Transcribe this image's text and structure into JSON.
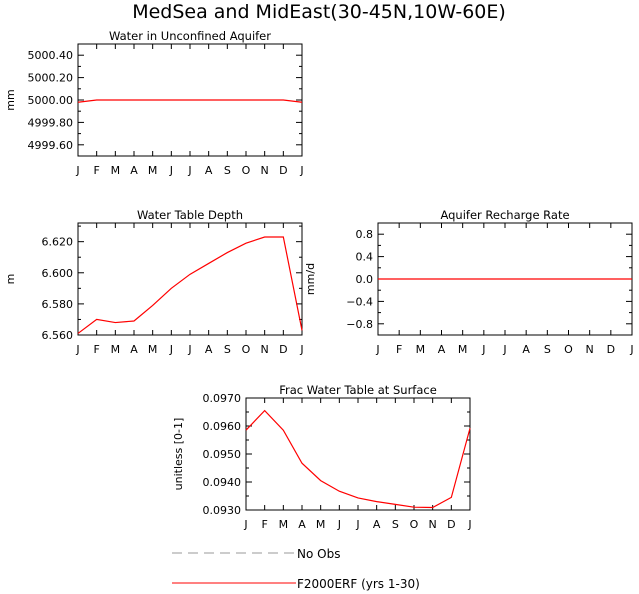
{
  "page_title": "MedSea and MidEast(30-45N,10W-60E)",
  "months": [
    "J",
    "F",
    "M",
    "A",
    "M",
    "J",
    "J",
    "A",
    "S",
    "O",
    "N",
    "D",
    "J"
  ],
  "legend": [
    {
      "label": "No Obs",
      "style": "dashed",
      "color": "#999999"
    },
    {
      "label": "F2000ERF (yrs 1-30)",
      "style": "solid",
      "color": "#ff0000"
    }
  ],
  "chart_data": [
    {
      "type": "line",
      "title": "Water in Unconfined Aquifer",
      "xlabel": "",
      "ylabel": "mm",
      "ylim": [
        4999.5,
        5000.5
      ],
      "yticks": [
        4999.6,
        4999.8,
        5000.0,
        5000.2,
        5000.4
      ],
      "ytick_labels": [
        "4999.60",
        "4999.80",
        "5000.00",
        "5000.20",
        "5000.40"
      ],
      "categories": [
        "J",
        "F",
        "M",
        "A",
        "M",
        "J",
        "J",
        "A",
        "S",
        "O",
        "N",
        "D",
        "J"
      ],
      "series": [
        {
          "name": "F2000ERF (yrs 1-30)",
          "color": "#ff0000",
          "values": [
            4999.98,
            5000.0,
            5000.0,
            5000.0,
            5000.0,
            5000.0,
            5000.0,
            5000.0,
            5000.0,
            5000.0,
            5000.0,
            5000.0,
            4999.98
          ]
        }
      ]
    },
    {
      "type": "line",
      "title": "Water Table Depth",
      "xlabel": "",
      "ylabel": "m",
      "ylim": [
        6.56,
        6.632
      ],
      "yticks": [
        6.56,
        6.58,
        6.6,
        6.62
      ],
      "ytick_labels": [
        "6.560",
        "6.580",
        "6.600",
        "6.620"
      ],
      "categories": [
        "J",
        "F",
        "M",
        "A",
        "M",
        "J",
        "J",
        "A",
        "S",
        "O",
        "N",
        "D",
        "J"
      ],
      "series": [
        {
          "name": "F2000ERF (yrs 1-30)",
          "color": "#ff0000",
          "values": [
            6.561,
            6.57,
            6.568,
            6.569,
            6.579,
            6.59,
            6.599,
            6.606,
            6.613,
            6.619,
            6.623,
            6.623,
            6.563
          ]
        }
      ]
    },
    {
      "type": "line",
      "title": "Aquifer Recharge Rate",
      "xlabel": "",
      "ylabel": "mm/d",
      "ylim": [
        -1.0,
        1.0
      ],
      "yticks": [
        -0.8,
        -0.4,
        0.0,
        0.4,
        0.8
      ],
      "ytick_labels": [
        "−0.8",
        "−0.4",
        "0.0",
        "0.4",
        "0.8"
      ],
      "categories": [
        "J",
        "F",
        "M",
        "A",
        "M",
        "J",
        "J",
        "A",
        "S",
        "O",
        "N",
        "D",
        "J"
      ],
      "series": [
        {
          "name": "F2000ERF (yrs 1-30)",
          "color": "#ff0000",
          "values": [
            0,
            0,
            0,
            0,
            0,
            0,
            0,
            0,
            0,
            0,
            0,
            0,
            0
          ]
        }
      ]
    },
    {
      "type": "line",
      "title": "Frac Water Table at Surface",
      "xlabel": "",
      "ylabel": "unitless [0-1]",
      "ylim": [
        0.093,
        0.097
      ],
      "yticks": [
        0.093,
        0.094,
        0.095,
        0.096,
        0.097
      ],
      "ytick_labels": [
        "0.0930",
        "0.0940",
        "0.0950",
        "0.0960",
        "0.0970"
      ],
      "categories": [
        "J",
        "F",
        "M",
        "A",
        "M",
        "J",
        "J",
        "A",
        "S",
        "O",
        "N",
        "D",
        "J"
      ],
      "series": [
        {
          "name": "F2000ERF (yrs 1-30)",
          "color": "#ff0000",
          "values": [
            0.09585,
            0.09655,
            0.09585,
            0.09467,
            0.09405,
            0.09367,
            0.09343,
            0.0933,
            0.0932,
            0.0931,
            0.09309,
            0.09345,
            0.09592
          ]
        }
      ]
    }
  ]
}
